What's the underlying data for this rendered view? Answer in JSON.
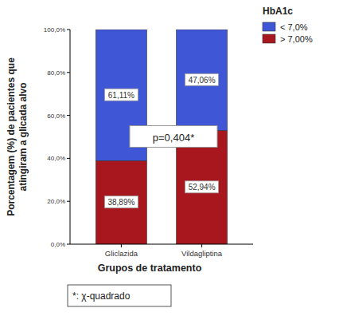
{
  "chart_data": {
    "type": "bar",
    "stacked": true,
    "data_labels": true,
    "grid": false,
    "legend": "top-right",
    "legend_title": "HbA1c",
    "x_label": "Grupos de tratamento",
    "y_label": [
      "Porcentagem  (%)  de  pacientes  que",
      "atingiram a glicada alvo"
    ],
    "annotation": "p=0,404*",
    "footnote": "*: χ-quadrado",
    "categories": [
      "Gliclazida",
      "Vildagliptina"
    ],
    "series": [
      {
        "name": "< 7,0%",
        "color": "#3f56d6",
        "values": [
          61.11,
          47.06
        ],
        "value_labels": [
          "61,11%",
          "47,06%"
        ]
      },
      {
        "name": "> 7,00%",
        "color": "#a8161e",
        "values": [
          38.89,
          52.94
        ],
        "value_labels": [
          "38,89%",
          "52,94%"
        ]
      }
    ],
    "ylim": [
      0,
      100
    ],
    "yticks": [
      {
        "value": 0,
        "label": "0,0%"
      },
      {
        "value": 20,
        "label": "20,0%"
      },
      {
        "value": 40,
        "label": "40,0%"
      },
      {
        "value": 60,
        "label": "60,0%"
      },
      {
        "value": 80,
        "label": "80,0%"
      },
      {
        "value": 100,
        "label": "100,0%"
      }
    ]
  }
}
